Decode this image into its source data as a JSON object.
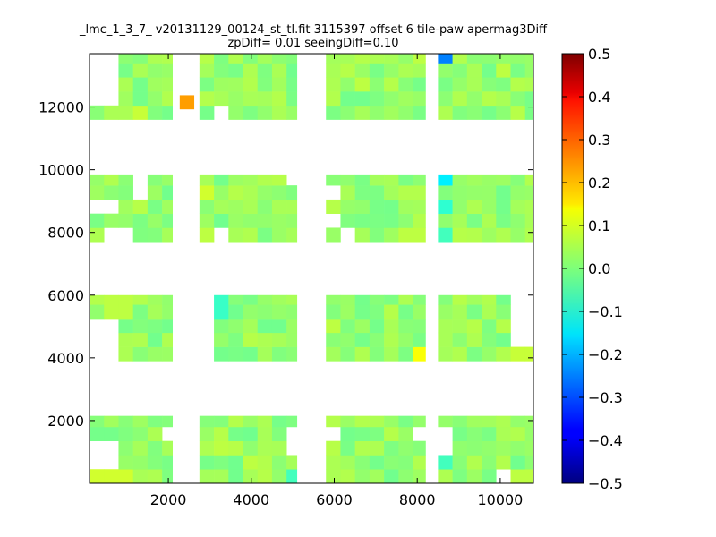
{
  "chart_data": {
    "type": "heatmap",
    "title": "_lmc_1_3_7_ v20131129_00124_st_tl.fit 3115397 offset 6 tile-paw apermag3Diff",
    "subtitle": "zpDiff= 0.01 seeingDiff=0.10",
    "xlim": [
      100,
      10800
    ],
    "ylim": [
      0,
      13700
    ],
    "x_ticks": [
      2000,
      4000,
      6000,
      8000,
      10000
    ],
    "y_ticks": [
      2000,
      4000,
      6000,
      8000,
      10000,
      12000
    ],
    "x_tick_labels": [
      "2000",
      "4000",
      "6000",
      "8000",
      "10000"
    ],
    "y_tick_labels": [
      "2000",
      "4000",
      "6000",
      "8000",
      "10000",
      "12000"
    ],
    "colorbar": {
      "min": -0.5,
      "max": 0.5,
      "colormap": "jet",
      "ticks": [
        0.5,
        0.4,
        0.3,
        0.2,
        0.1,
        0.0,
        -0.1,
        -0.2,
        -0.3,
        -0.4,
        -0.5
      ],
      "tick_labels": [
        "0.5",
        "0.4",
        "0.3",
        "0.2",
        "0.1",
        "0.0",
        "−0.1",
        "−0.2",
        "−0.3",
        "−0.4",
        "−0.5"
      ]
    },
    "grid": false,
    "cell_size": [
      350,
      450
    ],
    "column_ranges_x": [
      [
        100,
        2100
      ],
      [
        2750,
        5100
      ],
      [
        5800,
        8200
      ],
      [
        8500,
        10800
      ]
    ],
    "row_ranges_y": [
      [
        0,
        2150
      ],
      [
        3900,
        6000
      ],
      [
        7700,
        9850
      ],
      [
        11600,
        13700
      ]
    ],
    "base_value": 0.02,
    "cells": [
      {
        "x": 2450,
        "y": 12150,
        "v": 0.22
      },
      {
        "x": 8700,
        "y": 13450,
        "v": -0.25
      },
      {
        "x": 8700,
        "y": 9650,
        "v": -0.14
      },
      {
        "x": 8700,
        "y": 8750,
        "v": -0.08
      },
      {
        "x": 8700,
        "y": 8000,
        "v": -0.06
      },
      {
        "x": 8050,
        "y": 4050,
        "v": 0.12
      },
      {
        "x": 10600,
        "y": 4350,
        "v": 0.07
      },
      {
        "x": 3250,
        "y": 10150,
        "v": -0.04
      },
      {
        "x": 3250,
        "y": 5700,
        "v": -0.07
      },
      {
        "x": 2900,
        "y": 5250,
        "v": -0.05
      },
      {
        "x": 8700,
        "y": 650,
        "v": -0.06
      },
      {
        "x": 5000,
        "y": 200,
        "v": -0.06
      },
      {
        "x": 2900,
        "y": 9200,
        "v": 0.08
      },
      {
        "x": 2900,
        "y": 8000,
        "v": 0.06
      },
      {
        "x": 8000,
        "y": 13450,
        "v": 0.06
      },
      {
        "x": 450,
        "y": 200,
        "v": 0.08
      },
      {
        "x": 800,
        "y": 200,
        "v": 0.08
      },
      {
        "x": 10550,
        "y": 200,
        "v": 0.06
      },
      {
        "x": 6000,
        "y": 4950,
        "v": 0.06
      },
      {
        "x": 800,
        "y": 5700,
        "v": 0.06
      },
      {
        "x": 450,
        "y": 1650,
        "v": -0.01
      },
      {
        "x": 1200,
        "y": 11950,
        "v": 0.07
      },
      {
        "x": 6750,
        "y": 12700,
        "v": 0.06
      },
      {
        "x": 10000,
        "y": 13000,
        "v": 0.06
      },
      {
        "x": 9300,
        "y": 8000,
        "v": 0.05
      },
      {
        "x": 7900,
        "y": 9200,
        "v": 0.05
      },
      {
        "x": 7900,
        "y": 8000,
        "v": 0.06
      },
      {
        "x": 1200,
        "y": 12500,
        "v": -0.01
      },
      {
        "x": 4000,
        "y": 650,
        "v": 0.06
      },
      {
        "x": 3200,
        "y": 1100,
        "v": 0.06
      }
    ],
    "blank_cells": [
      {
        "x": 1200,
        "y": 9650
      },
      {
        "x": 1200,
        "y": 9200
      },
      {
        "x": 6000,
        "y": 9200
      },
      {
        "x": 450,
        "y": 8750
      },
      {
        "x": 6100,
        "y": 8400
      },
      {
        "x": 6450,
        "y": 8000
      },
      {
        "x": 800,
        "y": 8000
      },
      {
        "x": 450,
        "y": 4800
      },
      {
        "x": 450,
        "y": 4350
      },
      {
        "x": 2900,
        "y": 4350
      },
      {
        "x": 2900,
        "y": 4800
      },
      {
        "x": 2900,
        "y": 5700
      },
      {
        "x": 8350,
        "y": 4350
      },
      {
        "x": 8350,
        "y": 4800
      },
      {
        "x": 10550,
        "y": 4800
      },
      {
        "x": 10550,
        "y": 5250
      },
      {
        "x": 10550,
        "y": 5700
      },
      {
        "x": 450,
        "y": 1100
      },
      {
        "x": 450,
        "y": 650
      },
      {
        "x": 2000,
        "y": 1650
      },
      {
        "x": 5000,
        "y": 1650
      },
      {
        "x": 5000,
        "y": 1100
      },
      {
        "x": 6000,
        "y": 1650
      },
      {
        "x": 8000,
        "y": 1650
      },
      {
        "x": 8350,
        "y": 650
      },
      {
        "x": 8700,
        "y": 1100
      },
      {
        "x": 8700,
        "y": 1650
      },
      {
        "x": 10150,
        "y": 200
      },
      {
        "x": 450,
        "y": 13450
      },
      {
        "x": 450,
        "y": 12950
      },
      {
        "x": 450,
        "y": 12500
      },
      {
        "x": 3200,
        "y": 11950
      },
      {
        "x": 3200,
        "y": 11600
      },
      {
        "x": 5000,
        "y": 9650
      },
      {
        "x": 8350,
        "y": 12050
      },
      {
        "x": 8350,
        "y": 12500
      },
      {
        "x": 8350,
        "y": 12950
      },
      {
        "x": 8350,
        "y": 13450
      },
      {
        "x": 3250,
        "y": 7800
      },
      {
        "x": 3250,
        "y": 10300
      }
    ]
  }
}
